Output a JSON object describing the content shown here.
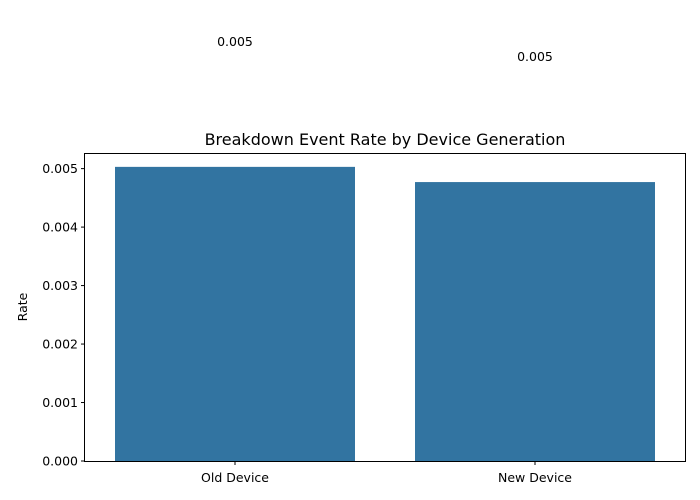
{
  "chart_data": {
    "type": "bar",
    "title": "Breakdown Event Rate by Device Generation",
    "xlabel": "",
    "ylabel": "Rate",
    "categories": [
      "Old Device",
      "New Device"
    ],
    "values": [
      0.00503,
      0.00477
    ],
    "data_labels": [
      "0.005",
      "0.005"
    ],
    "ylim": [
      0,
      0.00525
    ],
    "yticks": [
      0,
      0.001,
      0.002,
      0.003,
      0.004,
      0.005
    ],
    "ytick_labels": [
      "0.000",
      "0.001",
      "0.002",
      "0.003",
      "0.004",
      "0.005"
    ],
    "bar_color": "#3274a1",
    "grid": false,
    "legend": "none"
  }
}
